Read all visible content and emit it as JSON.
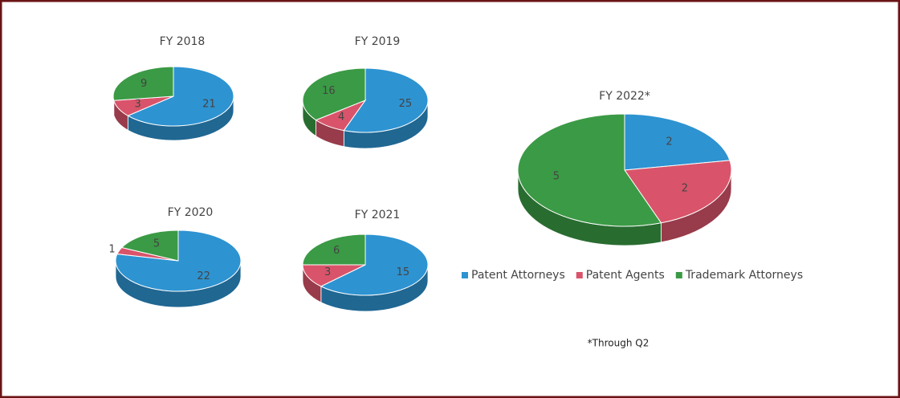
{
  "chart_data": [
    {
      "type": "pie",
      "title": "FY 2018",
      "values": [
        21,
        3,
        9
      ],
      "colors": [
        "#2e93d1",
        "#d9546a",
        "#3b9a45"
      ]
    },
    {
      "type": "pie",
      "title": "FY 2019",
      "values": [
        25,
        4,
        16
      ],
      "colors": [
        "#2e93d1",
        "#d9546a",
        "#3b9a45"
      ]
    },
    {
      "type": "pie",
      "title": "FY 2020",
      "values": [
        22,
        1,
        5
      ],
      "colors": [
        "#2e93d1",
        "#d9546a",
        "#3b9a45"
      ]
    },
    {
      "type": "pie",
      "title": "FY 2021",
      "values": [
        15,
        3,
        6
      ],
      "colors": [
        "#2e93d1",
        "#d9546a",
        "#3b9a45"
      ]
    },
    {
      "type": "pie",
      "title": "FY 2022*",
      "values": [
        2,
        2,
        5
      ],
      "colors": [
        "#2e93d1",
        "#d9546a",
        "#3b9a45"
      ],
      "categories": [
        "Patent Attorneys",
        "Patent Agents",
        "Trademark Attorneys"
      ],
      "legend": true
    }
  ],
  "note": "*Through Q2"
}
